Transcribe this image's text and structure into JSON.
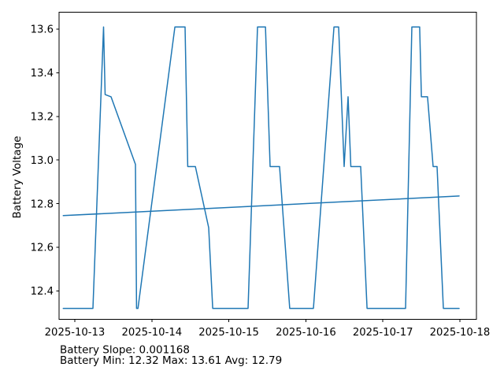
{
  "figure": {
    "background": "#ffffff",
    "spine_color": "#000000",
    "tick_text_color": "#000000",
    "line_color": "#1f77b4",
    "ylabel_color": "#1f77b4",
    "annotation_color": "#000000"
  },
  "chart_data": {
    "type": "line",
    "title": "",
    "xlabel": "",
    "ylabel": "Battery Voltage",
    "x_unit": "days since 2025-10-13 00:00",
    "xlim": [
      -0.2,
      5.21
    ],
    "ylim": [
      12.26,
      13.68
    ],
    "grid": false,
    "legend": "none",
    "x_tick_values": [
      0,
      1,
      2,
      3,
      4,
      5
    ],
    "x_tick_labels": [
      "2025-10-13",
      "2025-10-14",
      "2025-10-15",
      "2025-10-16",
      "2025-10-17",
      "2025-10-18"
    ],
    "y_tick_values": [
      12.4,
      12.6,
      12.8,
      13.0,
      13.2,
      13.4,
      13.6
    ],
    "y_tick_labels": [
      "12.4",
      "12.6",
      "12.8",
      "13.0",
      "13.2",
      "13.4",
      "13.6"
    ],
    "series": [
      {
        "name": "battery_voltage",
        "points": [
          [
            -0.15,
            12.32
          ],
          [
            0.235,
            12.32
          ],
          [
            0.373,
            13.61
          ],
          [
            0.394,
            13.3
          ],
          [
            0.47,
            13.29
          ],
          [
            0.787,
            12.98
          ],
          [
            0.802,
            12.32
          ],
          [
            0.82,
            12.32
          ],
          [
            1.3,
            13.61
          ],
          [
            1.432,
            13.61
          ],
          [
            1.466,
            12.97
          ],
          [
            1.565,
            12.97
          ],
          [
            1.738,
            12.69
          ],
          [
            1.79,
            12.32
          ],
          [
            2.25,
            12.32
          ],
          [
            2.372,
            13.61
          ],
          [
            2.475,
            13.61
          ],
          [
            2.536,
            12.97
          ],
          [
            2.658,
            12.97
          ],
          [
            2.79,
            12.32
          ],
          [
            3.098,
            12.32
          ],
          [
            3.365,
            13.61
          ],
          [
            3.425,
            13.61
          ],
          [
            3.497,
            12.97
          ],
          [
            3.548,
            13.29
          ],
          [
            3.584,
            12.97
          ],
          [
            3.712,
            12.97
          ],
          [
            3.794,
            12.32
          ],
          [
            4.294,
            12.32
          ],
          [
            4.376,
            13.61
          ],
          [
            4.478,
            13.61
          ],
          [
            4.5,
            13.29
          ],
          [
            4.58,
            13.29
          ],
          [
            4.652,
            12.97
          ],
          [
            4.703,
            12.97
          ],
          [
            4.785,
            12.32
          ],
          [
            4.99,
            12.32
          ]
        ]
      },
      {
        "name": "battery_trend",
        "points": [
          [
            -0.15,
            12.745
          ],
          [
            4.99,
            12.835
          ]
        ]
      }
    ],
    "annotations": [
      "Battery Slope: 0.001168",
      "Battery Min: 12.32 Max: 13.61 Avg: 12.79"
    ],
    "stats": {
      "slope": "0.001168",
      "min": "12.32",
      "max": "13.61",
      "avg": "12.79"
    }
  }
}
